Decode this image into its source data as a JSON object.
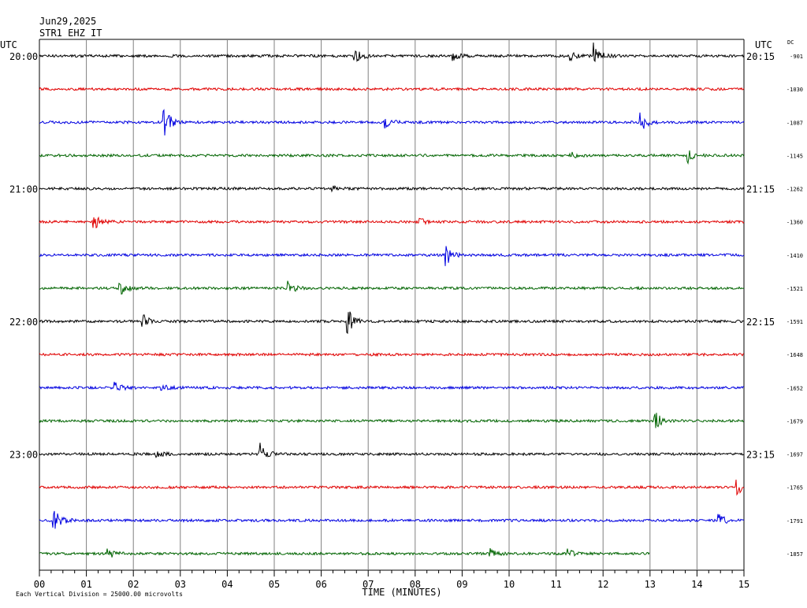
{
  "header": {
    "date": "Jun29,2025",
    "station": "STR1 EHZ IT"
  },
  "footer": {
    "scale_note": "Each Vertical Division = 25000.00 microvolts"
  },
  "colors": {
    "trace_cycle": [
      "#000000",
      "#e00000",
      "#0000e0",
      "#006400"
    ],
    "grid": "#808080",
    "background": "#ffffff"
  },
  "chart_data": {
    "type": "line",
    "title": "Jun29,2025 STR1 EHZ IT",
    "xlabel": "TIME (MINUTES)",
    "ylabel_left": "UTC",
    "ylabel_right": "UTC",
    "dc_label": "DC",
    "x_range": [
      0,
      15
    ],
    "x_ticks": [
      "00",
      "01",
      "02",
      "03",
      "04",
      "05",
      "06",
      "07",
      "08",
      "09",
      "10",
      "11",
      "12",
      "13",
      "14",
      "15"
    ],
    "grid": true,
    "trace_minutes_per_line": 15,
    "left_time_labels": [
      {
        "row": 0,
        "text": "20:00"
      },
      {
        "row": 4,
        "text": "21:00"
      },
      {
        "row": 8,
        "text": "22:00"
      },
      {
        "row": 12,
        "text": "23:00"
      }
    ],
    "right_time_labels": [
      {
        "row": 0,
        "text": "20:15"
      },
      {
        "row": 4,
        "text": "21:15"
      },
      {
        "row": 8,
        "text": "22:15"
      },
      {
        "row": 12,
        "text": "23:15"
      }
    ],
    "dc_offsets": [
      "-901",
      "-1030",
      "-1087",
      "-1145",
      "-1262",
      "-1360",
      "-1410",
      "-1521",
      "-1591",
      "-1648",
      "-1652",
      "-1679",
      "-1697",
      "-1765",
      "-1791",
      "-1857"
    ],
    "traces": [
      {
        "row": 0,
        "end_minute": 15,
        "events": [
          {
            "t": 6.7,
            "amp": 12
          },
          {
            "t": 8.8,
            "amp": 6
          },
          {
            "t": 11.3,
            "amp": 5
          },
          {
            "t": 11.8,
            "amp": 17
          }
        ]
      },
      {
        "row": 1,
        "end_minute": 15,
        "events": []
      },
      {
        "row": 2,
        "end_minute": 15,
        "events": [
          {
            "t": 2.65,
            "amp": 20
          },
          {
            "t": 7.35,
            "amp": 8
          },
          {
            "t": 12.8,
            "amp": 12
          }
        ]
      },
      {
        "row": 3,
        "end_minute": 15,
        "events": [
          {
            "t": 13.8,
            "amp": 10
          },
          {
            "t": 11.3,
            "amp": 4
          }
        ]
      },
      {
        "row": 4,
        "end_minute": 15,
        "events": [
          {
            "t": 6.2,
            "amp": 4
          }
        ]
      },
      {
        "row": 5,
        "end_minute": 15,
        "events": [
          {
            "t": 1.15,
            "amp": 10
          },
          {
            "t": 8.1,
            "amp": 5
          }
        ]
      },
      {
        "row": 6,
        "end_minute": 15,
        "events": [
          {
            "t": 8.65,
            "amp": 14
          }
        ]
      },
      {
        "row": 7,
        "end_minute": 15,
        "events": [
          {
            "t": 1.7,
            "amp": 12
          },
          {
            "t": 5.3,
            "amp": 9
          }
        ]
      },
      {
        "row": 8,
        "end_minute": 15,
        "events": [
          {
            "t": 2.2,
            "amp": 9
          },
          {
            "t": 6.55,
            "amp": 18
          }
        ]
      },
      {
        "row": 9,
        "end_minute": 15,
        "events": []
      },
      {
        "row": 10,
        "end_minute": 15,
        "events": [
          {
            "t": 1.6,
            "amp": 7
          },
          {
            "t": 2.6,
            "amp": 4
          }
        ]
      },
      {
        "row": 11,
        "end_minute": 15,
        "events": [
          {
            "t": 13.1,
            "amp": 12
          }
        ]
      },
      {
        "row": 12,
        "end_minute": 15,
        "events": [
          {
            "t": 4.7,
            "amp": 14
          },
          {
            "t": 2.5,
            "amp": 4
          }
        ]
      },
      {
        "row": 13,
        "end_minute": 15,
        "events": [
          {
            "t": 14.85,
            "amp": 10
          }
        ]
      },
      {
        "row": 14,
        "end_minute": 15,
        "events": [
          {
            "t": 0.3,
            "amp": 20
          },
          {
            "t": 14.45,
            "amp": 9
          }
        ]
      },
      {
        "row": 15,
        "end_minute": 13,
        "events": [
          {
            "t": 1.45,
            "amp": 7
          },
          {
            "t": 9.55,
            "amp": 8
          },
          {
            "t": 11.25,
            "amp": 5
          }
        ]
      }
    ]
  }
}
